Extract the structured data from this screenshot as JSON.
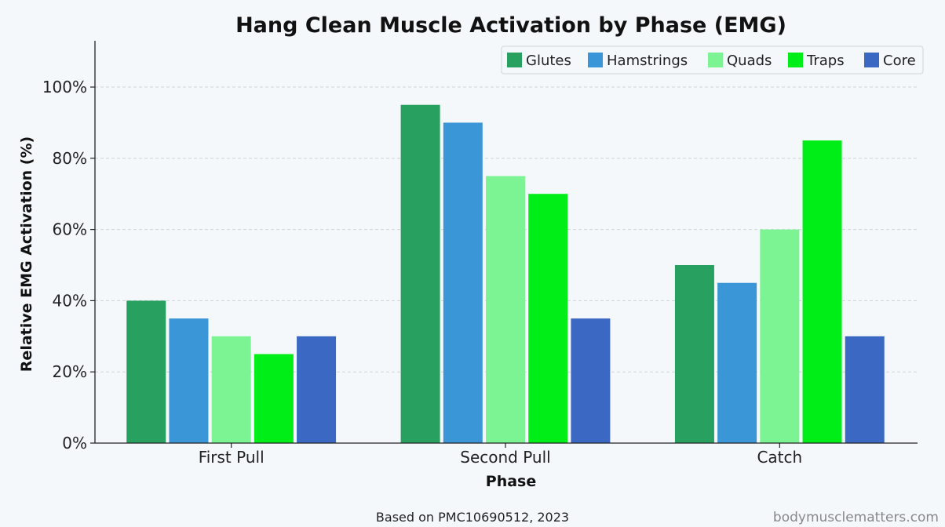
{
  "chart_data": {
    "type": "bar",
    "title": "Hang Clean Muscle Activation by Phase (EMG)",
    "xlabel": "Phase",
    "ylabel": "Relative EMG Activation (%)",
    "categories": [
      "First Pull",
      "Second Pull",
      "Catch"
    ],
    "series": [
      {
        "name": "Glutes",
        "color": "#27a060",
        "values": [
          40,
          95,
          50
        ]
      },
      {
        "name": "Hamstrings",
        "color": "#3a96d6",
        "values": [
          35,
          90,
          45
        ]
      },
      {
        "name": "Quads",
        "color": "#7cf494",
        "values": [
          30,
          75,
          60
        ]
      },
      {
        "name": "Traps",
        "color": "#00ee17",
        "values": [
          25,
          70,
          85
        ]
      },
      {
        "name": "Core",
        "color": "#3b68c3",
        "values": [
          30,
          35,
          30
        ]
      }
    ],
    "ylim": [
      0,
      113
    ],
    "yticks": [
      0,
      20,
      40,
      60,
      80,
      100
    ],
    "ytick_labels": [
      "0%",
      "20%",
      "40%",
      "60%",
      "80%",
      "100%"
    ],
    "grid": true,
    "legend_position": "top-right"
  },
  "footer": {
    "source": "Based on PMC10690512, 2023",
    "watermark": "bodymusclematters.com"
  }
}
